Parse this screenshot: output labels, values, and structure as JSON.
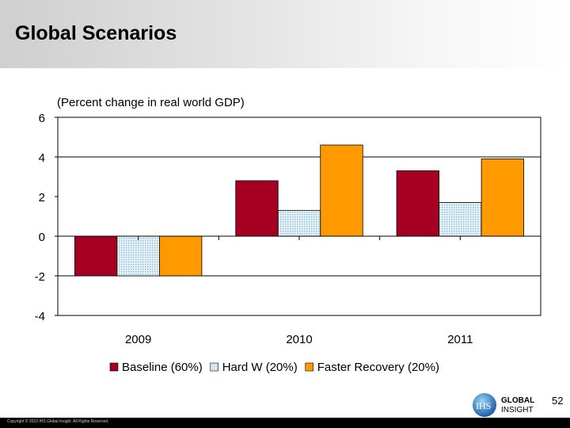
{
  "header": {
    "title": "Global Scenarios"
  },
  "footer": {
    "copyright": "Copyright © 2010 IHS Global Insight. All Rights Reserved.",
    "page_number": "52"
  },
  "logo": {
    "text": "IHS GLOBAL INSIGHT"
  },
  "chart_data": {
    "type": "bar",
    "title": "(Percent change in real world GDP)",
    "categories": [
      "2009",
      "2010",
      "2011"
    ],
    "series": [
      {
        "name": "Baseline (60%)",
        "values": [
          -2.0,
          2.8,
          3.3
        ],
        "color": "#a50021"
      },
      {
        "name": "Hard W (20%)",
        "values": [
          -2.0,
          1.3,
          1.7
        ],
        "color": "#c6e2ef",
        "pattern": "dotted"
      },
      {
        "name": "Faster Recovery (20%)",
        "values": [
          -2.0,
          4.6,
          3.9
        ],
        "color": "#ff9900"
      }
    ],
    "ylim": [
      -4,
      6
    ],
    "yticks": [
      "6",
      "4",
      "2",
      "0",
      "-2",
      "-4"
    ],
    "gridlines": [
      4,
      -2
    ],
    "legend": "bottom"
  }
}
